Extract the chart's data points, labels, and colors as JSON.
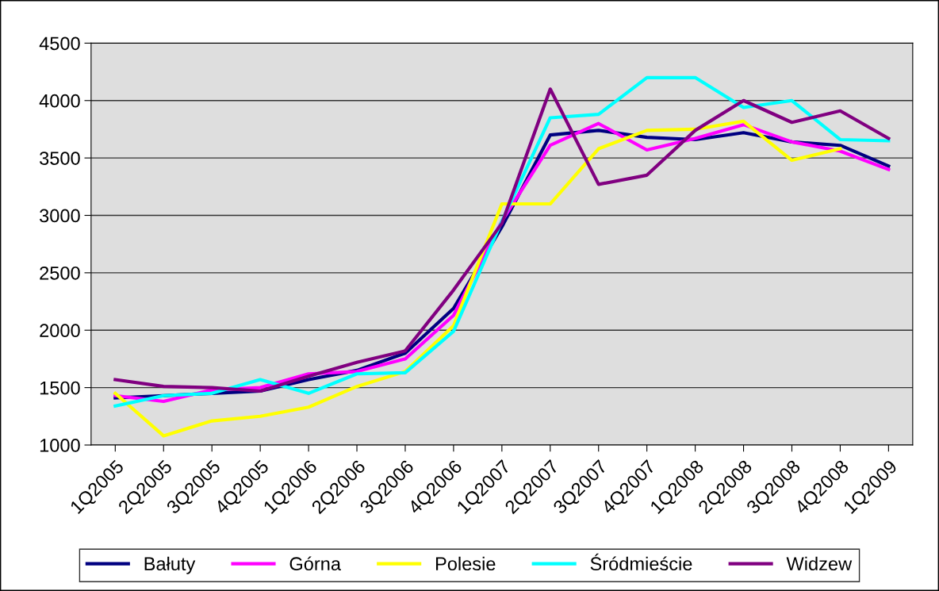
{
  "chart_data": {
    "type": "line",
    "categories": [
      "1Q2005",
      "2Q2005",
      "3Q2005",
      "4Q2005",
      "1Q2006",
      "2Q2006",
      "3Q2006",
      "4Q2006",
      "1Q2007",
      "2Q2007",
      "3Q2007",
      "4Q2007",
      "1Q2008",
      "2Q2008",
      "3Q2008",
      "4Q2008",
      "1Q2009"
    ],
    "series": [
      {
        "name": "Bałuty",
        "color": "#000080",
        "values": [
          1410,
          1430,
          1450,
          1470,
          1570,
          1650,
          1800,
          2190,
          2900,
          3700,
          3740,
          3680,
          3660,
          3720,
          3640,
          3610,
          3430
        ]
      },
      {
        "name": "Górna",
        "color": "#ff00ff",
        "values": [
          1430,
          1380,
          1480,
          1500,
          1620,
          1640,
          1750,
          2130,
          2950,
          3610,
          3800,
          3570,
          3670,
          3790,
          3640,
          3560,
          3400
        ]
      },
      {
        "name": "Polesie",
        "color": "#ffff00",
        "values": [
          1450,
          1080,
          1210,
          1250,
          1330,
          1510,
          1640,
          2040,
          3100,
          3100,
          3580,
          3740,
          3750,
          3820,
          3480,
          3580,
          null
        ]
      },
      {
        "name": "Śródmieście",
        "color": "#00ffff",
        "values": [
          1340,
          1430,
          1450,
          1570,
          1450,
          1620,
          1630,
          1990,
          2950,
          3850,
          3880,
          4200,
          4200,
          3940,
          4000,
          3660,
          3650
        ]
      },
      {
        "name": "Widzew",
        "color": "#800080",
        "values": [
          1570,
          1510,
          1500,
          1470,
          1600,
          1720,
          1820,
          2350,
          2930,
          4100,
          3270,
          3350,
          3740,
          4000,
          3810,
          3910,
          3670
        ]
      }
    ],
    "ylim": [
      1000,
      4500
    ],
    "yticks": [
      1000,
      1500,
      2000,
      2500,
      3000,
      3500,
      4000,
      4500
    ],
    "grid": "y",
    "legend": "bottom",
    "marker": "none",
    "line_style": "solid"
  }
}
